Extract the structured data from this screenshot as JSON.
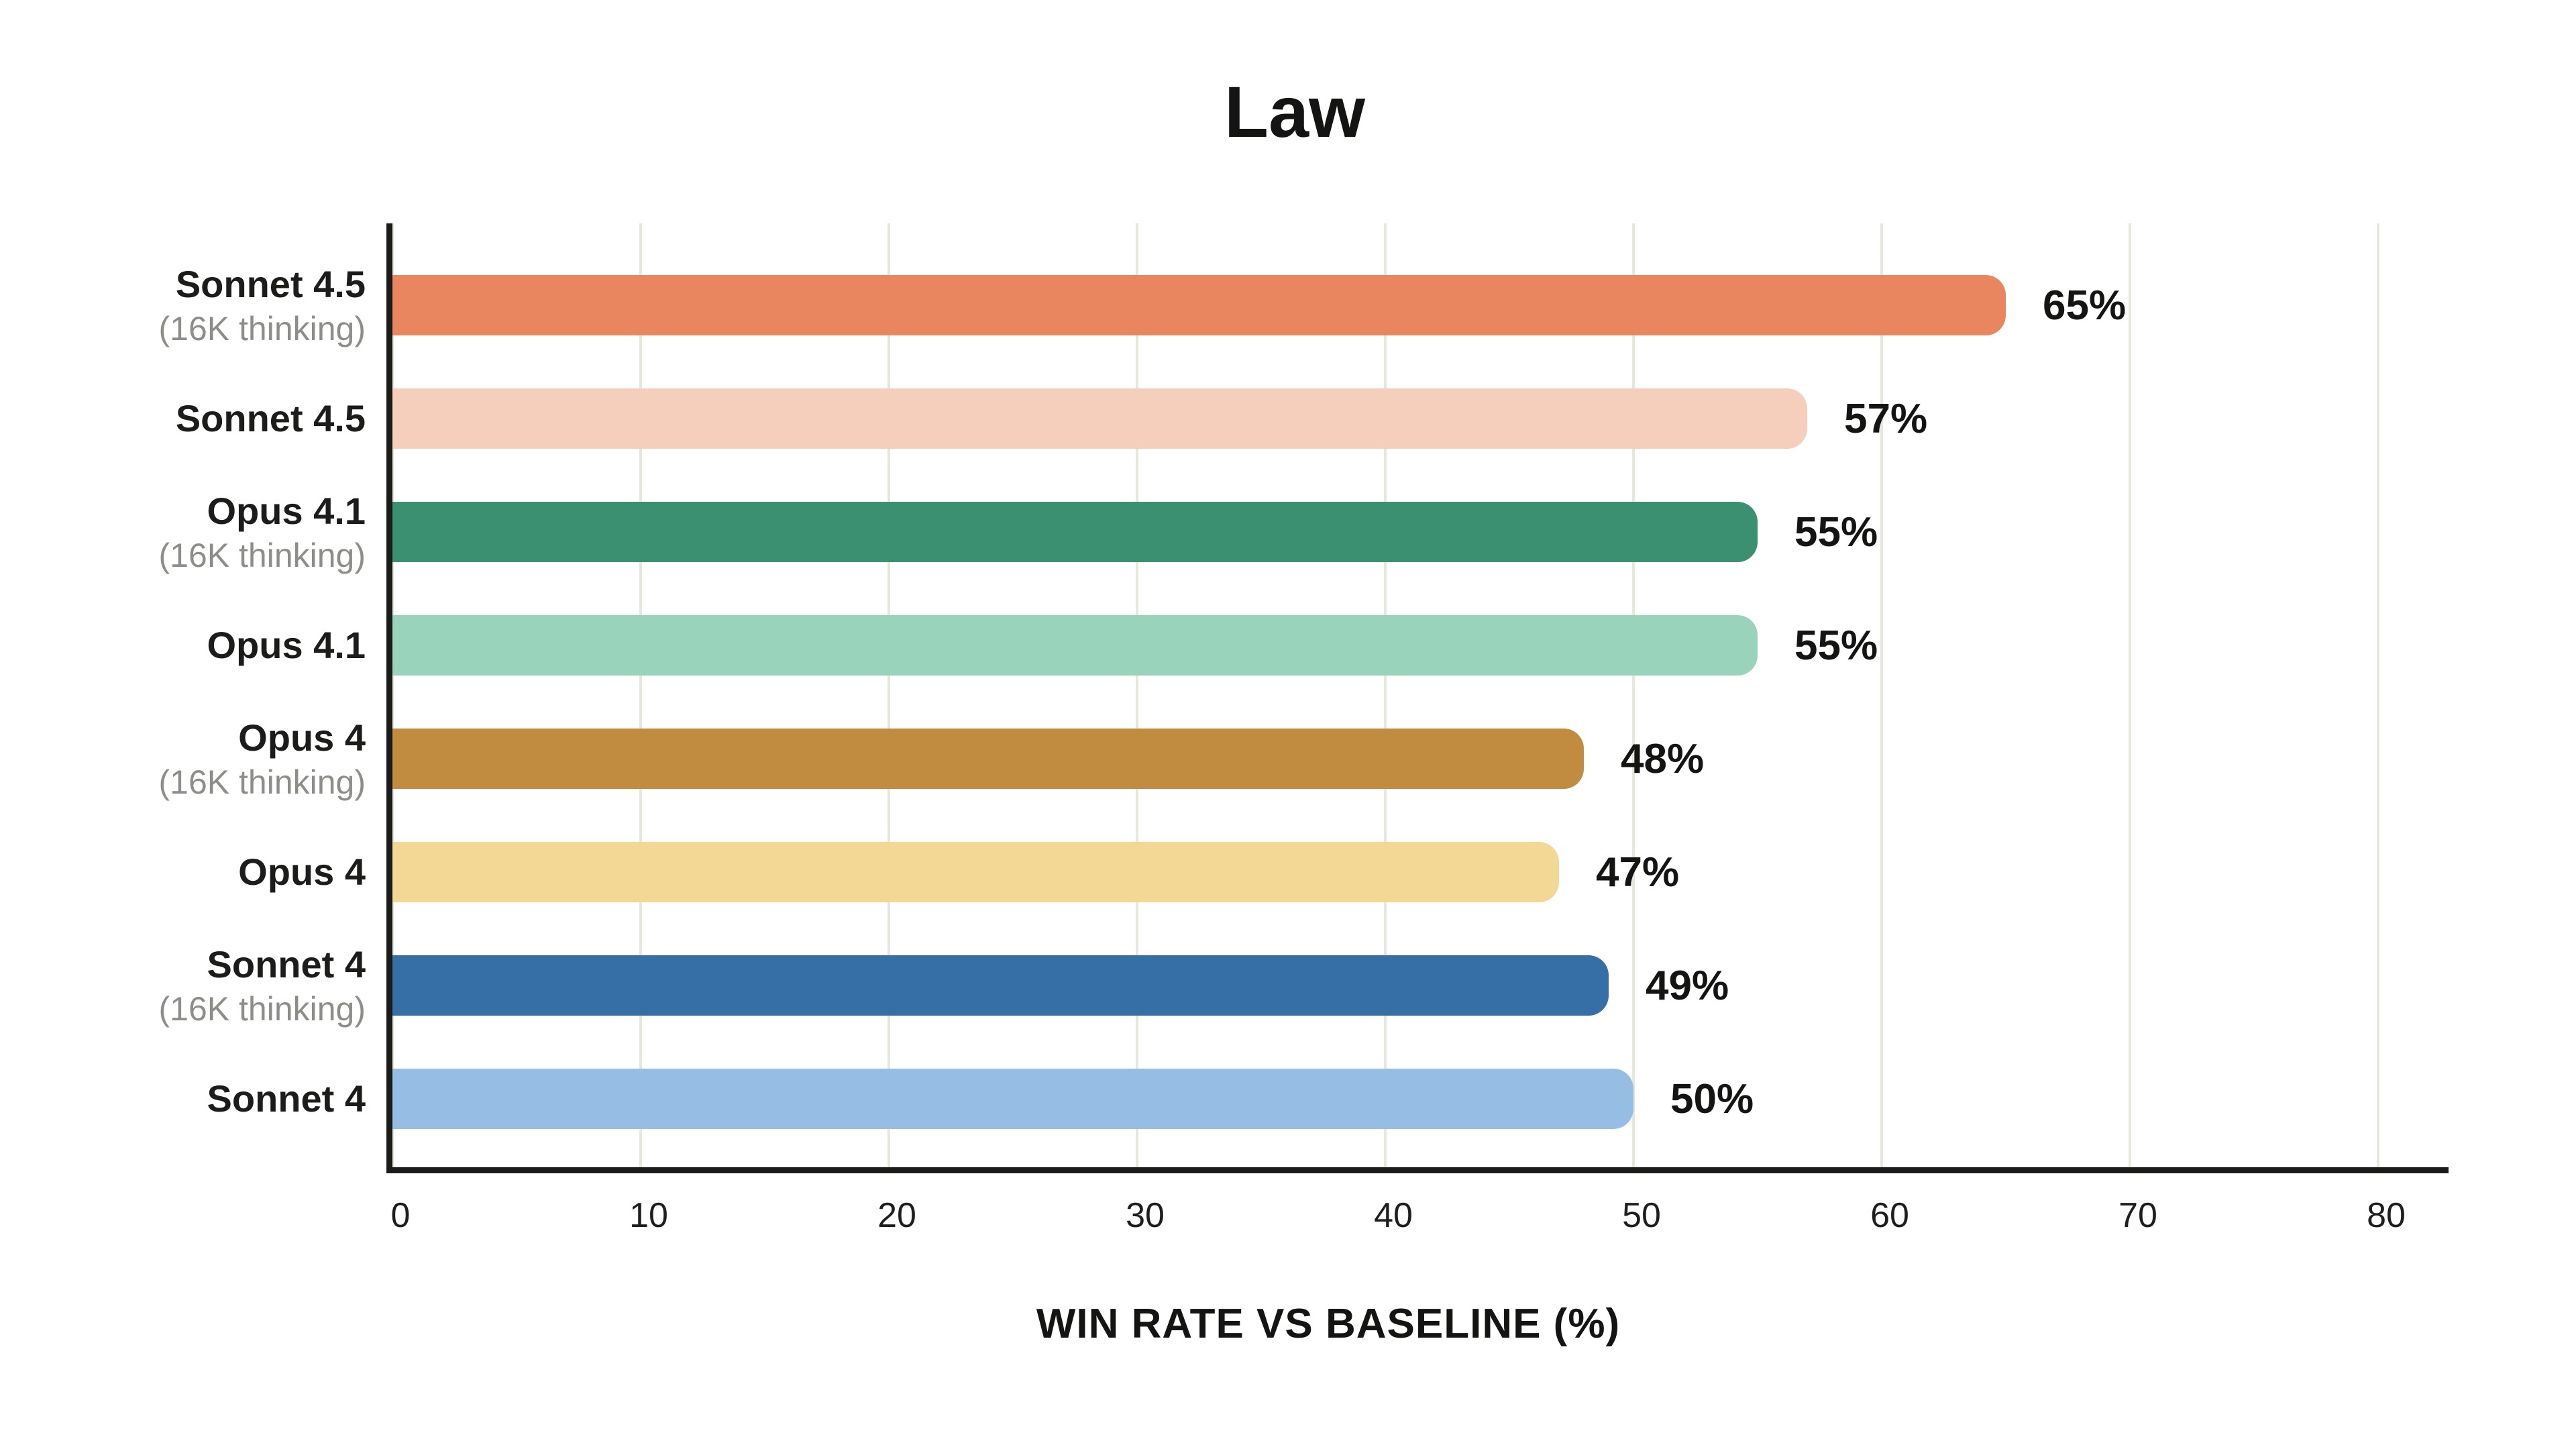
{
  "chart_data": {
    "type": "bar",
    "orientation": "horizontal",
    "title": "Law",
    "xlabel": "WIN RATE VS BASELINE (%)",
    "xlim": [
      0,
      83
    ],
    "xticks": [
      "0",
      "10",
      "20",
      "30",
      "40",
      "50",
      "60",
      "70",
      "80"
    ],
    "grid": true,
    "legend": "none",
    "bars": [
      {
        "label": "Sonnet 4.5",
        "sublabel": "(16K thinking)",
        "value": 65,
        "display": "65%",
        "color": "#E9855F"
      },
      {
        "label": "Sonnet 4.5",
        "sublabel": "",
        "value": 57,
        "display": "57%",
        "color": "#F5CEBC"
      },
      {
        "label": "Opus 4.1",
        "sublabel": "(16K thinking)",
        "value": 55,
        "display": "55%",
        "color": "#3A9070"
      },
      {
        "label": "Opus 4.1",
        "sublabel": "",
        "value": 55,
        "display": "55%",
        "color": "#9AD3BC"
      },
      {
        "label": "Opus 4",
        "sublabel": "(16K thinking)",
        "value": 48,
        "display": "48%",
        "color": "#C18B40"
      },
      {
        "label": "Opus 4",
        "sublabel": "",
        "value": 47,
        "display": "47%",
        "color": "#F2D795"
      },
      {
        "label": "Sonnet 4",
        "sublabel": "(16K thinking)",
        "value": 49,
        "display": "49%",
        "color": "#356FA6"
      },
      {
        "label": "Sonnet 4",
        "sublabel": "",
        "value": 50,
        "display": "50%",
        "color": "#96BEE4"
      }
    ]
  },
  "style": {
    "background": "#FFFFFF",
    "axis_color": "#1B1B1A",
    "grid_color": "#E8E6DD",
    "text_color": "#141413",
    "sublabel_color": "#8F8D89"
  }
}
